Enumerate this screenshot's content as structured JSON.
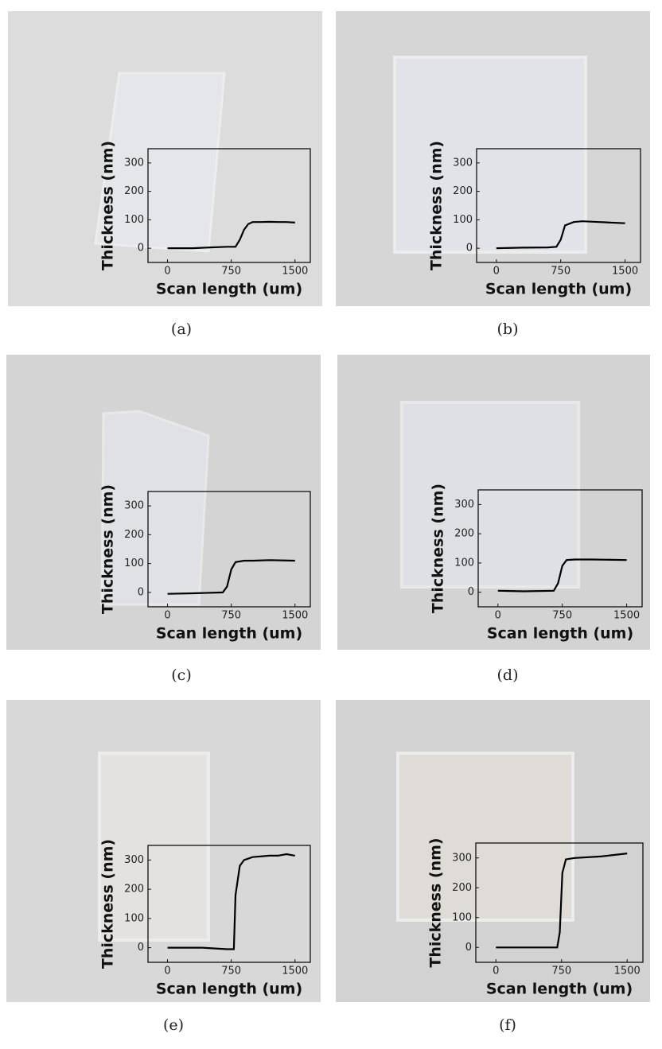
{
  "chart_data": [
    {
      "type": "line",
      "caption": "(a)",
      "xlabel": "Scan length (um)",
      "ylabel": "Thickness (nm)",
      "color": "#000000",
      "x": [
        0,
        300,
        500,
        700,
        800,
        850,
        900,
        950,
        1000,
        1100,
        1200,
        1300,
        1400,
        1500
      ],
      "values": [
        0,
        0,
        3,
        5,
        5,
        30,
        65,
        85,
        92,
        92,
        93,
        92,
        92,
        90
      ],
      "xlim": [
        -230,
        1680
      ],
      "ylim": [
        -50,
        350
      ],
      "xticks": [
        0,
        750,
        1500
      ],
      "yticks": [
        0,
        100,
        200,
        300
      ]
    },
    {
      "type": "line",
      "caption": "(b)",
      "xlabel": "Scan length (um)",
      "ylabel": "Thickness (nm)",
      "color": "#000000",
      "x": [
        0,
        300,
        600,
        700,
        750,
        800,
        900,
        1000,
        1200,
        1500
      ],
      "values": [
        0,
        2,
        3,
        5,
        30,
        80,
        92,
        95,
        92,
        88
      ],
      "xlim": [
        -230,
        1680
      ],
      "ylim": [
        -50,
        350
      ],
      "xticks": [
        0,
        750,
        1500
      ],
      "yticks": [
        0,
        100,
        200,
        300
      ]
    },
    {
      "type": "line",
      "caption": "(c)",
      "xlabel": "Scan length (um)",
      "ylabel": "Thickness (nm)",
      "color": "#000000",
      "x": [
        0,
        300,
        650,
        700,
        750,
        800,
        900,
        1000,
        1200,
        1500
      ],
      "values": [
        -5,
        -3,
        0,
        20,
        80,
        105,
        110,
        110,
        112,
        110
      ],
      "xlim": [
        -230,
        1680
      ],
      "ylim": [
        -50,
        350
      ],
      "xticks": [
        0,
        750,
        1500
      ],
      "yticks": [
        0,
        100,
        200,
        300
      ]
    },
    {
      "type": "line",
      "caption": "(d)",
      "xlabel": "Scan length (um)",
      "ylabel": "Thickness (nm)",
      "color": "#000000",
      "x": [
        0,
        300,
        650,
        700,
        750,
        800,
        900,
        1100,
        1500
      ],
      "values": [
        5,
        3,
        5,
        30,
        90,
        110,
        112,
        112,
        110
      ],
      "xlim": [
        -230,
        1680
      ],
      "ylim": [
        -50,
        350
      ],
      "xticks": [
        0,
        750,
        1500
      ],
      "yticks": [
        0,
        100,
        200,
        300
      ]
    },
    {
      "type": "line",
      "caption": "(e)",
      "xlabel": "Scan length (um)",
      "ylabel": "Thickness (nm)",
      "color": "#000000",
      "x": [
        0,
        400,
        700,
        780,
        800,
        850,
        900,
        1000,
        1200,
        1300,
        1400,
        1500
      ],
      "values": [
        0,
        0,
        -5,
        -5,
        180,
        280,
        300,
        310,
        315,
        315,
        320,
        315
      ],
      "xlim": [
        -230,
        1680
      ],
      "ylim": [
        -50,
        350
      ],
      "xticks": [
        0,
        750,
        1500
      ],
      "yticks": [
        0,
        100,
        200,
        300
      ]
    },
    {
      "type": "line",
      "caption": "(f)",
      "xlabel": "Scan length (um)",
      "ylabel": "Thickness (nm)",
      "color": "#000000",
      "x": [
        0,
        350,
        700,
        730,
        760,
        800,
        900,
        1200,
        1500
      ],
      "values": [
        0,
        0,
        0,
        50,
        250,
        295,
        300,
        305,
        315
      ],
      "xlim": [
        -230,
        1680
      ],
      "ylim": [
        -50,
        350
      ],
      "xticks": [
        0,
        750,
        1500
      ],
      "yticks": [
        0,
        100,
        200,
        300
      ]
    }
  ]
}
